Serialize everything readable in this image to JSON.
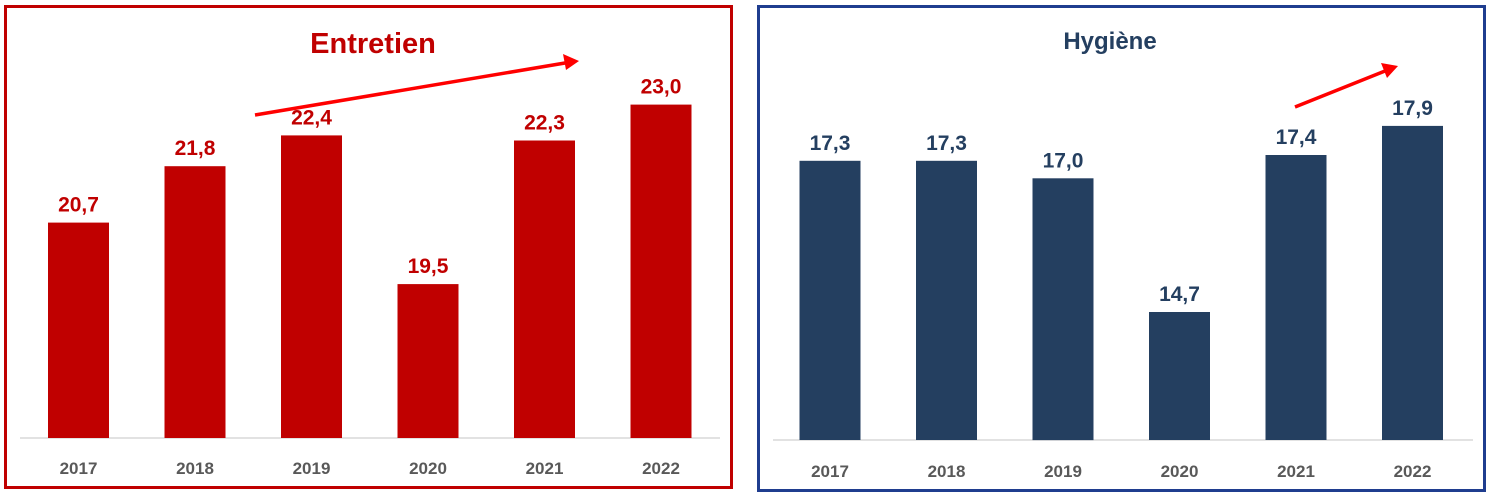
{
  "chart_data": [
    {
      "type": "bar",
      "title": "Entretien",
      "categories": [
        "2017",
        "2018",
        "2019",
        "2020",
        "2021",
        "2022"
      ],
      "values": [
        20.7,
        21.8,
        22.4,
        19.5,
        22.3,
        23.0
      ],
      "value_labels": [
        "20,7",
        "21,8",
        "22,4",
        "19,5",
        "22,3",
        "23,0"
      ],
      "bar_color": "#c00000",
      "label_color": "#c00000",
      "title_color": "#c00000",
      "border_color": "#c00000",
      "arrow_color": "#ff0000",
      "ylim": [
        16.5,
        23.5
      ],
      "grid": false,
      "legend": "none"
    },
    {
      "type": "bar",
      "title": "Hygiène",
      "categories": [
        "2017",
        "2018",
        "2019",
        "2020",
        "2021",
        "2022"
      ],
      "values": [
        17.3,
        17.3,
        17.0,
        14.7,
        17.4,
        17.9
      ],
      "value_labels": [
        "17,3",
        "17,3",
        "17,0",
        "14,7",
        "17,4",
        "17,9"
      ],
      "bar_color": "#243f60",
      "label_color": "#243f60",
      "title_color": "#243f60",
      "border_color": "#1f3d8f",
      "arrow_color": "#ff0000",
      "ylim": [
        12.5,
        18.5
      ],
      "grid": false,
      "legend": "none"
    }
  ]
}
